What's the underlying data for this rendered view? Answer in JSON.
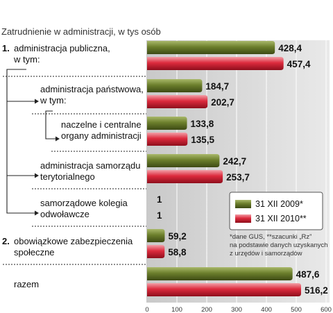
{
  "chart_data": {
    "type": "bar",
    "orientation": "horizontal",
    "title": "Zatrudnienie w administracji, w tys osób",
    "categories": [
      {
        "number": "1.",
        "lines": [
          "administracja publiczna,",
          "w tym:"
        ]
      },
      {
        "number": "",
        "lines": [
          "administracja państwowa,",
          "w tym:"
        ]
      },
      {
        "number": "",
        "lines": [
          "naczelne i centralne",
          "organy administracji"
        ]
      },
      {
        "number": "",
        "lines": [
          "administracja samorządu",
          "terytorialnego"
        ]
      },
      {
        "number": "",
        "lines": [
          "samorządowe kolegia",
          "odwoławcze"
        ]
      },
      {
        "number": "2.",
        "lines": [
          "obowiązkowe zabezpieczenia",
          "społeczne"
        ]
      },
      {
        "number": "",
        "lines": [
          "razem"
        ]
      }
    ],
    "series": [
      {
        "name": "31 XII 2009*",
        "color": "#6a7d2b",
        "values": [
          428.4,
          184.7,
          133.8,
          242.7,
          1,
          59.2,
          487.6
        ],
        "labels": [
          "428,4",
          "184,7",
          "133,8",
          "242,7",
          "1",
          "59,2",
          "487,6"
        ]
      },
      {
        "name": "31 XII 2010**",
        "color": "#d9273a",
        "values": [
          457.4,
          202.7,
          135.5,
          253.7,
          1,
          58.8,
          516.2
        ],
        "labels": [
          "457,4",
          "202,7",
          "135,5",
          "253,7",
          "1",
          "58,8",
          "516,2"
        ]
      }
    ],
    "xlim": [
      0,
      600
    ],
    "xticks": [
      0,
      100,
      200,
      300,
      400,
      500,
      600
    ],
    "footnote": [
      "*dane GUS, **szacunki „Rz”",
      "na podstawie danych uzyskanych",
      "z urzędów i samorządów"
    ],
    "legend_position": "right"
  }
}
